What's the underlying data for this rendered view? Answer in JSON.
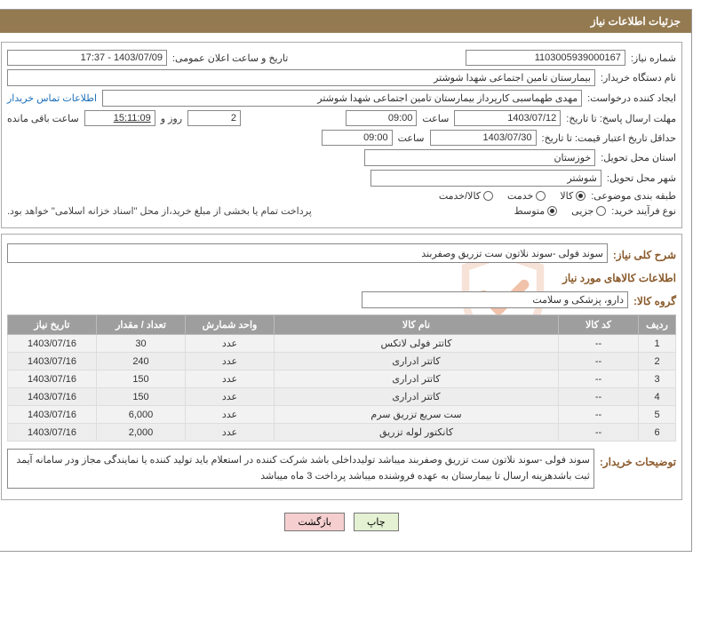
{
  "panel": {
    "title": "جزئیات اطلاعات نیاز"
  },
  "watermark": {
    "text": "AriaTender.net",
    "shield_color": "#f2d0bf"
  },
  "labels": {
    "request_no": "شماره نیاز:",
    "announce_dt": "تاریخ و ساعت اعلان عمومی:",
    "buyer_org": "نام دستگاه خریدار:",
    "requester": "ایجاد کننده درخواست:",
    "buyer_contact": "اطلاعات تماس خریدار",
    "response_deadline": "مهلت ارسال پاسخ: تا تاریخ:",
    "hour": "ساعت",
    "days_and": "روز و",
    "remaining": "ساعت باقی مانده",
    "price_validity": "حداقل تاریخ اعتبار قیمت: تا تاریخ:",
    "delivery_province": "استان محل تحویل:",
    "delivery_city": "شهر محل تحویل:",
    "category": "طبقه بندی موضوعی:",
    "purchase_type": "نوع فرآیند خرید:",
    "payment_note": "پرداخت تمام یا بخشی از مبلغ خرید،از محل \"اسناد خزانه اسلامی\" خواهد بود.",
    "overall_desc": "شرح کلی نیاز:",
    "goods_info": "اطلاعات کالاهای مورد نیاز",
    "goods_group": "گروه کالا:",
    "buyer_notes": "توضیحات خریدار:"
  },
  "fields": {
    "request_no": "1103005939000167",
    "announce_dt": "1403/07/09 - 17:37",
    "buyer_org": "بیمارستان تامین اجتماعی شهدا شوشتر",
    "requester": "مهدی طهماسبی کارپرداز بیمارستان تامین اجتماعی شهدا شوشتر",
    "resp_date": "1403/07/12",
    "resp_time": "09:00",
    "resp_days": "2",
    "resp_remaining": "15:11:09",
    "price_date": "1403/07/30",
    "price_time": "09:00",
    "province": "خوزستان",
    "city": "شوشتر",
    "overall_desc": "سوند فولی -سوند نلاتون ست تزریق وصفربند",
    "goods_group": "دارو، پزشکی و سلامت",
    "buyer_notes": "سوند فولی -سوند نلاتون ست تزریق وصفربند میباشد تولیدداخلی باشد شرکت کننده در استعلام باید تولید کننده یا نمایندگی مجاز ودر سامانه آیمد ثبت باشدهزینه ارسال تا بیمارستان به عهده فروشنده میباشد  پرداخت 3 ماه میباشد"
  },
  "category_options": {
    "opt1": "کالا",
    "opt2": "خدمت",
    "opt3": "کالا/خدمت",
    "selected": "opt1"
  },
  "purchase_options": {
    "opt1": "جزیی",
    "opt2": "متوسط",
    "selected": "opt2"
  },
  "table": {
    "headers": {
      "row": "ردیف",
      "code": "کد کالا",
      "name": "نام کالا",
      "unit": "واحد شمارش",
      "qty": "تعداد / مقدار",
      "date": "تاریخ نیاز"
    },
    "rows": [
      {
        "n": "1",
        "code": "--",
        "name": "کاتتر فولی لاتکس",
        "unit": "عدد",
        "qty": "30",
        "date": "1403/07/16"
      },
      {
        "n": "2",
        "code": "--",
        "name": "کاتتر ادراری",
        "unit": "عدد",
        "qty": "240",
        "date": "1403/07/16"
      },
      {
        "n": "3",
        "code": "--",
        "name": "کاتتر ادراری",
        "unit": "عدد",
        "qty": "150",
        "date": "1403/07/16"
      },
      {
        "n": "4",
        "code": "--",
        "name": "کاتتر ادراری",
        "unit": "عدد",
        "qty": "150",
        "date": "1403/07/16"
      },
      {
        "n": "5",
        "code": "--",
        "name": "ست سریع تزریق سرم",
        "unit": "عدد",
        "qty": "6,000",
        "date": "1403/07/16"
      },
      {
        "n": "6",
        "code": "--",
        "name": "کانکتور لوله تزریق",
        "unit": "عدد",
        "qty": "2,000",
        "date": "1403/07/16"
      }
    ]
  },
  "buttons": {
    "print": "چاپ",
    "back": "بازگشت"
  },
  "colors": {
    "header_bg": "#947a50",
    "header_text": "#ffffff",
    "th_bg": "#9e9e9e",
    "row_bg": "#f2f2f2",
    "link": "#1b6fb8",
    "section_title": "#8a5a2b"
  }
}
